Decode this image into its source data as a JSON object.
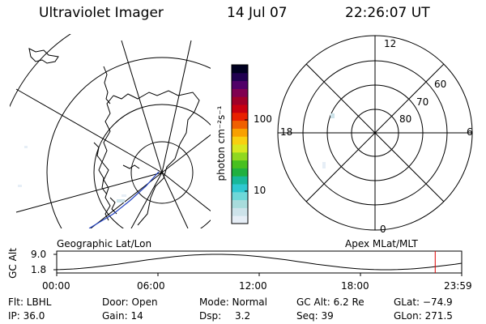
{
  "header": {
    "instrument": "Ultraviolet Imager",
    "date": "14 Jul 07",
    "time": "22:26:07 UT"
  },
  "colorbar": {
    "unit_label": "photon cm⁻²s⁻¹",
    "ticks": [
      {
        "label": "100",
        "value": 100
      },
      {
        "label": "10",
        "value": 10
      }
    ],
    "colors": [
      "#e6eef6",
      "#cde3ea",
      "#a8dcdc",
      "#6fd8d8",
      "#2fc8d0",
      "#18b89a",
      "#20b040",
      "#48c020",
      "#90d820",
      "#d8e820",
      "#f8d010",
      "#f8a000",
      "#f06000",
      "#e82000",
      "#c80010",
      "#a00028",
      "#800050",
      "#500068",
      "#200050",
      "#000020"
    ]
  },
  "geo_panel": {
    "label": "Geographic Lat/Lon"
  },
  "mag_panel": {
    "label": "Apex MLat/MLT",
    "mlt_labels": {
      "top": "12",
      "bottom": "0",
      "left": "18",
      "right": "6"
    },
    "lat_labels": [
      "60",
      "70",
      "80"
    ]
  },
  "altitude_plot": {
    "ylabel": "GC Alt",
    "yticks": [
      "9.0",
      "1.8"
    ],
    "xticks": [
      "00:00",
      "06:00",
      "12:00",
      "18:00",
      "23:59"
    ],
    "marker_hour": 22.43,
    "marker_color": "#e00000"
  },
  "info": {
    "flt": "Flt: LBHL",
    "ip": "IP: 36.0",
    "door": "Door: Open",
    "gain": "Gain: 14",
    "mode": "Mode: Normal",
    "dsp_label": "Dsp:",
    "dsp_value": "3.2",
    "gc_alt": "GC Alt: 6.2 Re",
    "seq": "Seq: 39",
    "glat": "GLat: −74.9",
    "glon": "GLon: 271.5"
  }
}
